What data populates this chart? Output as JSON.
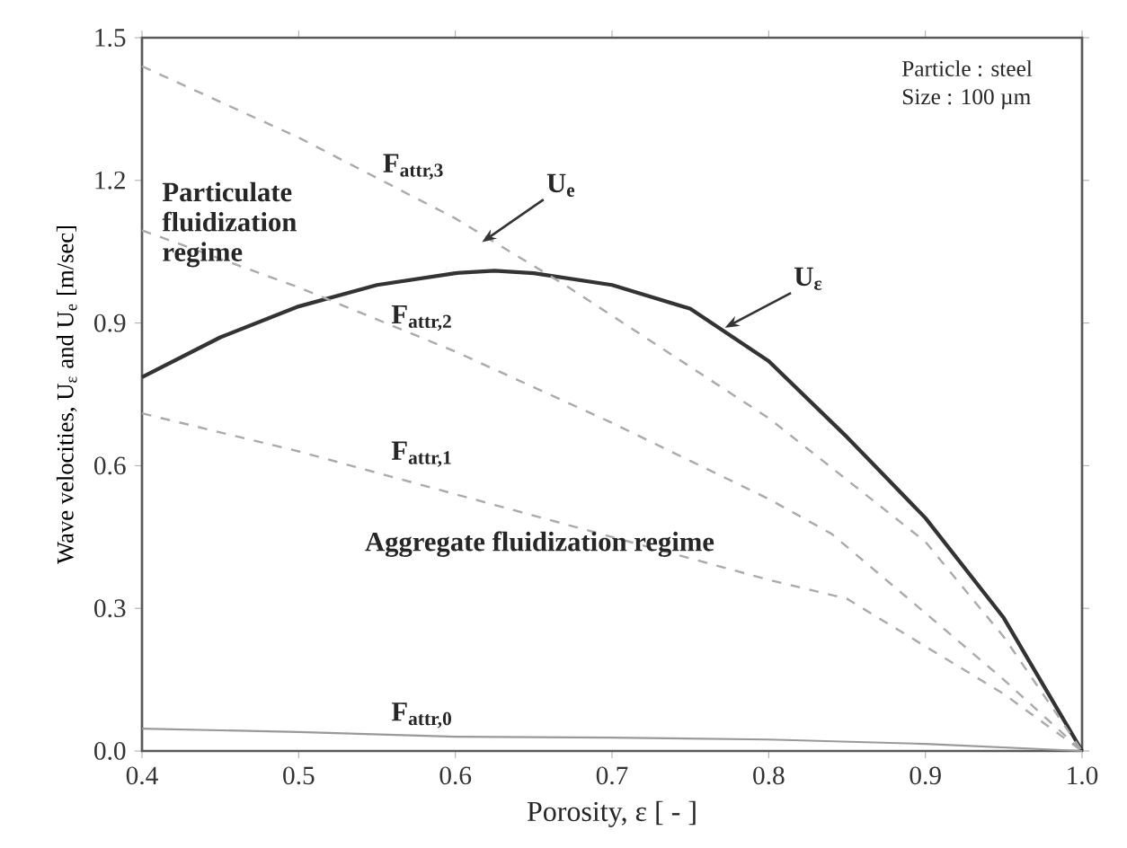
{
  "chart_data": {
    "type": "line",
    "xlabel": "Porosity, ε [ - ]",
    "ylabel": "Wave velocities, U$_{ε}$ and U$_{e}$ [m/sec]",
    "xlim": [
      0.4,
      1.0
    ],
    "xticks": [
      0.4,
      0.5,
      0.6,
      0.7,
      0.8,
      0.9,
      {
        "value": 1.0,
        "label": "1.0"
      }
    ],
    "ylim": [
      0.0,
      1.5
    ],
    "yticks": [
      {
        "value": 0.0,
        "label": "0.0"
      },
      0.3,
      0.6,
      0.9,
      1.2,
      1.5
    ],
    "grid": false,
    "marker": "none",
    "series": [
      {
        "color": "#333333",
        "line_style": "solid",
        "x": [
          0.4,
          0.45,
          0.5,
          0.55,
          0.6,
          0.625,
          0.65,
          0.7,
          0.75,
          0.8,
          0.85,
          0.9,
          0.95,
          1.0
        ],
        "values": [
          0.786,
          0.87,
          0.935,
          0.98,
          1.005,
          1.01,
          1.005,
          0.98,
          0.93,
          0.82,
          0.66,
          0.49,
          0.28,
          0.0
        ]
      },
      {
        "color": "#aaaaaa",
        "line_style": "dashed",
        "x": [
          0.4,
          0.5,
          0.6,
          0.67,
          0.8,
          0.9,
          0.95,
          1.0
        ],
        "values": [
          1.44,
          1.29,
          1.12,
          0.98,
          0.7,
          0.44,
          0.24,
          0.0
        ]
      },
      {
        "color": "#aaaaaa",
        "line_style": "dashed",
        "x": [
          0.4,
          0.5,
          0.6,
          0.7,
          0.8,
          0.84,
          0.9,
          0.95,
          1.0
        ],
        "values": [
          1.095,
          0.975,
          0.84,
          0.69,
          0.53,
          0.457,
          0.29,
          0.15,
          0.0
        ]
      },
      {
        "color": "#aaaaaa",
        "line_style": "dashed",
        "x": [
          0.4,
          0.5,
          0.6,
          0.7,
          0.8,
          0.85,
          0.9,
          0.95,
          1.0
        ],
        "values": [
          0.71,
          0.63,
          0.54,
          0.45,
          0.36,
          0.32,
          0.22,
          0.12,
          0.0
        ]
      },
      {
        "color": "#999999",
        "line_style": "solid",
        "x": [
          0.4,
          0.5,
          0.6,
          0.7,
          0.8,
          0.9,
          1.0
        ],
        "values": [
          0.047,
          0.04,
          0.03,
          0.028,
          0.024,
          0.015,
          0.0
        ]
      }
    ],
    "annotations": [
      "Particle : steel",
      "Size : 100 µm",
      "Particulate fluidization regime",
      "Aggregate fluidization regime",
      "F$_{attr,3}$",
      "F$_{attr,2}$",
      "F$_{attr,1}$",
      "F$_{attr,0}$",
      {
        "text": "U$_{e}$",
        "x": 0.617,
        "y": 1.07
      },
      {
        "text": "U$_{ε}$",
        "x": 0.772,
        "y": 0.89
      }
    ]
  }
}
